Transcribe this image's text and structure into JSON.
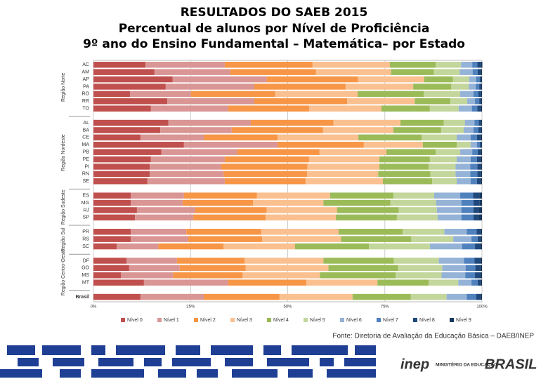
{
  "chart_data": {
    "type": "stacked-bar-horizontal",
    "title": "RESULTADOS DO SAEB 2015",
    "subtitle": "Percentual de alunos por Nível de Proficiência",
    "subtitle2": "9º ano do Ensino Fundamental – Matemática– por Estado",
    "region_labels": [
      "Região Norte",
      "Região Nordeste",
      "Região Sudeste",
      "Região Sul",
      "Região Centro-Oeste"
    ],
    "categories": [
      "AC",
      "AM",
      "AP",
      "PA",
      "RO",
      "RR",
      "TO",
      "AL",
      "BA",
      "CE",
      "MA",
      "PB",
      "PE",
      "PI",
      "RN",
      "SE",
      "ES",
      "MG",
      "RJ",
      "SP",
      "PR",
      "RS",
      "SC",
      "DF",
      "GO",
      "MS",
      "MT",
      "Brasil"
    ],
    "xlim": [
      0,
      100
    ],
    "xticks": [
      {
        "value": 0,
        "label": "0%"
      },
      {
        "value": 25,
        "label": "25%"
      },
      {
        "value": 50,
        "label": "50%"
      },
      {
        "value": 75,
        "label": "75%"
      },
      {
        "value": 100,
        "label": "100%"
      }
    ],
    "grid": true,
    "legend": "bottom",
    "series": [
      {
        "name": "Nível 0",
        "color": "#c0504d",
        "values": [
          13.4,
          15.7,
          20.4,
          18.6,
          9.4,
          19.0,
          14.8,
          19.3,
          17.2,
          12.1,
          23.3,
          17.5,
          14.8,
          14.5,
          14.5,
          13.9,
          9.6,
          9.6,
          11.2,
          10.7,
          9.6,
          9.6,
          6.0,
          8.5,
          9.2,
          7.1,
          13.0,
          12.1
        ]
      },
      {
        "name": "Nível 1",
        "color": "#d99694",
        "values": [
          20.4,
          19.5,
          24.2,
          22.8,
          15.7,
          22.4,
          19.9,
          21.2,
          18.4,
          16.3,
          24.1,
          19.5,
          19.0,
          18.4,
          19.0,
          19.9,
          13.7,
          13.4,
          15.0,
          15.0,
          14.3,
          14.8,
          10.7,
          13.0,
          13.0,
          13.4,
          21.7,
          16.3
        ]
      },
      {
        "name": "Nível 2",
        "color": "#f79646",
        "values": [
          22.6,
          22.1,
          23.5,
          23.5,
          21.7,
          23.9,
          20.8,
          21.3,
          23.5,
          19.0,
          22.2,
          21.2,
          21.7,
          22.2,
          21.5,
          20.8,
          18.8,
          18.1,
          18.4,
          18.6,
          19.3,
          19.0,
          16.8,
          17.4,
          17.0,
          17.9,
          20.1,
          19.5
        ]
      },
      {
        "name": "Nível 3",
        "color": "#fac090",
        "values": [
          19.9,
          19.3,
          17.0,
          17.4,
          21.2,
          17.4,
          18.6,
          17.2,
          18.1,
          20.8,
          15.2,
          17.2,
          18.1,
          18.5,
          18.3,
          19.9,
          18.8,
          18.1,
          18.1,
          18.1,
          19.9,
          20.3,
          18.4,
          20.3,
          21.3,
          19.9,
          18.3,
          18.8
        ]
      },
      {
        "name": "Nível 4",
        "color": "#9bbb59",
        "values": [
          11.8,
          11.0,
          7.4,
          9.8,
          17.0,
          9.2,
          12.5,
          11.2,
          12.3,
          16.3,
          8.7,
          12.7,
          13.0,
          12.7,
          13.4,
          12.7,
          16.3,
          17.2,
          15.9,
          15.7,
          16.5,
          18.1,
          19.0,
          18.1,
          17.9,
          19.5,
          13.2,
          15.0
        ]
      },
      {
        "name": "Nível 5",
        "color": "#c3d69b",
        "values": [
          6.5,
          6.7,
          4.2,
          4.5,
          9.4,
          4.3,
          7.4,
          5.4,
          5.8,
          9.0,
          3.6,
          6.3,
          6.9,
          6.9,
          6.5,
          6.3,
          10.5,
          11.8,
          9.8,
          10.5,
          10.7,
          10.8,
          15.7,
          11.6,
          11.4,
          11.8,
          7.6,
          9.2
        ]
      },
      {
        "name": "Nível 6",
        "color": "#95b3d7",
        "values": [
          2.9,
          3.3,
          1.8,
          1.8,
          3.4,
          2.0,
          3.4,
          2.5,
          2.5,
          3.6,
          1.6,
          3.1,
          3.6,
          3.8,
          3.8,
          3.6,
          6.7,
          6.5,
          6.3,
          6.1,
          5.8,
          4.7,
          8.3,
          6.5,
          6.0,
          6.1,
          3.4,
          5.2
        ]
      },
      {
        "name": "Nível 7",
        "color": "#4f81bd",
        "values": [
          1.3,
          1.3,
          0.9,
          0.9,
          1.3,
          1.1,
          1.4,
          1.1,
          1.3,
          1.6,
          0.7,
          1.4,
          1.6,
          1.8,
          1.8,
          1.6,
          3.3,
          3.1,
          3.1,
          3.1,
          2.5,
          1.6,
          3.3,
          2.7,
          2.5,
          2.5,
          1.6,
          2.4
        ]
      },
      {
        "name": "Nível 8",
        "color": "#1f497d",
        "values": [
          0.9,
          0.7,
          0.4,
          0.5,
          0.7,
          0.5,
          0.8,
          0.5,
          0.7,
          0.9,
          0.4,
          0.7,
          0.9,
          0.9,
          0.9,
          0.9,
          1.6,
          1.6,
          1.4,
          1.4,
          1.1,
          0.7,
          1.3,
          1.4,
          1.3,
          1.3,
          0.7,
          1.1
        ]
      },
      {
        "name": "Nível 9",
        "color": "#17375e",
        "values": [
          0.4,
          0.4,
          0.2,
          0.2,
          0.2,
          0.2,
          0.4,
          0.3,
          0.2,
          0.4,
          0.2,
          0.4,
          0.4,
          0.3,
          0.3,
          0.4,
          0.7,
          0.6,
          0.8,
          0.8,
          0.3,
          0.4,
          0.5,
          0.5,
          0.4,
          0.5,
          0.4,
          0.4
        ]
      }
    ],
    "source": "Fonte: Diretoria de Avaliação da Educação Básica – DAEB/INEP"
  },
  "footer": {
    "logo1": "inep",
    "logo2": "MINISTÉRIO DA EDUCAÇÃO",
    "logo3": "BRASIL"
  }
}
